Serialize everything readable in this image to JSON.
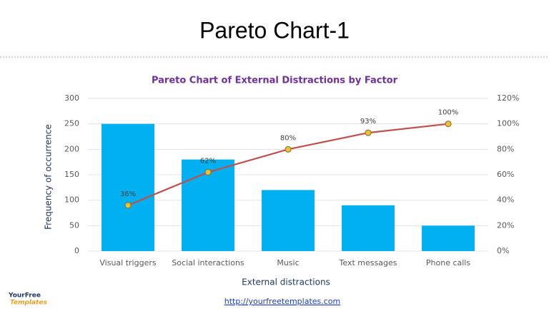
{
  "header": {
    "title": "Pareto Chart-1"
  },
  "chart_data": {
    "type": "pareto",
    "title": "Pareto Chart of External Distractions by Factor",
    "x_label": "External distractions",
    "y_label": "Frequency of occurrence",
    "categories": [
      "Visual triggers",
      "Social interactions",
      "Music",
      "Text messages",
      "Phone calls"
    ],
    "values": [
      250,
      180,
      120,
      90,
      50
    ],
    "color": "#00b0f0",
    "line": {
      "values": [
        36,
        62,
        80,
        93,
        100
      ],
      "value_labels": [
        "36%",
        "62%",
        "80%",
        "93%",
        "100%"
      ],
      "axis": "y2",
      "color": "#c0504d",
      "marker_color": "#f0c030"
    },
    "ylim": [
      0,
      300
    ],
    "yticks": [
      0,
      50,
      100,
      150,
      200,
      250,
      300
    ],
    "y2lim": [
      0,
      120
    ],
    "y2ticks": [
      {
        "value": 0,
        "label": "0%"
      },
      {
        "value": 20,
        "label": "20%"
      },
      {
        "value": 40,
        "label": "40%"
      },
      {
        "value": 60,
        "label": "60%"
      },
      {
        "value": 80,
        "label": "80%"
      },
      {
        "value": 100,
        "label": "100%"
      },
      {
        "value": 120,
        "label": "120%"
      }
    ],
    "grid": true
  },
  "footer": {
    "logo_top": "YourFree",
    "logo_bottom": "Templates",
    "url": "http://yourfreetemplates.com"
  }
}
